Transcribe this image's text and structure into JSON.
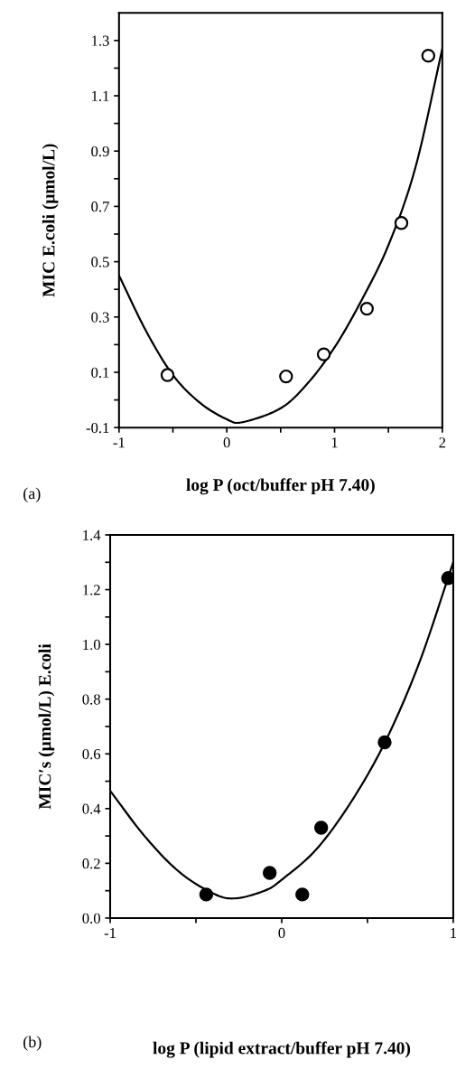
{
  "chart_data": [
    {
      "type": "scatter",
      "xlabel": "log P (oct/buffer pH 7.40)",
      "ylabel": "MIC E.coli (μmol/L)",
      "annotations": [
        "(a)"
      ],
      "xlim": [
        -1,
        2
      ],
      "xticks": [
        -1,
        {
          "value": -0.5,
          "label": null
        },
        0,
        {
          "value": 0.5,
          "label": null
        },
        1,
        {
          "value": 1.5,
          "label": null
        },
        2
      ],
      "ylim": [
        -0.1,
        1.4
      ],
      "yticks": [
        -0.1,
        {
          "value": 0.0,
          "label": null
        },
        0.1,
        {
          "value": 0.2,
          "label": null
        },
        0.3,
        {
          "value": 0.4,
          "label": null
        },
        0.5,
        {
          "value": 0.6,
          "label": null
        },
        0.7,
        {
          "value": 0.8,
          "label": null
        },
        0.9,
        {
          "value": 1.0,
          "label": null
        },
        1.1,
        {
          "value": 1.2,
          "label": null
        },
        1.3
      ],
      "grid": false,
      "legend": false,
      "series": [
        {
          "type": "line",
          "color": "#000000",
          "marker": "none",
          "line_style": "solid",
          "x": [
            -1,
            -0.75,
            -0.5,
            -0.25,
            0,
            0.15,
            0.5,
            0.75,
            1,
            1.25,
            1.5,
            1.75,
            2
          ],
          "values": [
            0.45,
            0.25,
            0.09,
            -0.01,
            -0.07,
            -0.08,
            -0.03,
            0.06,
            0.19,
            0.36,
            0.56,
            0.84,
            1.27
          ]
        },
        {
          "color": "#ffffff",
          "marker": "circle",
          "x": [
            -0.55,
            0.55,
            0.9,
            1.3,
            1.62,
            1.87
          ],
          "values": [
            0.09,
            0.085,
            0.165,
            0.33,
            0.64,
            1.245
          ]
        }
      ]
    },
    {
      "type": "scatter",
      "xlabel": "log P (lipid extract/buffer pH 7.40)",
      "ylabel": "MIC′s (μmol/L) E.coli",
      "annotations": [
        "(b)"
      ],
      "xlim": [
        -1,
        1
      ],
      "xticks": [
        -1,
        {
          "value": -0.5,
          "label": null
        },
        0,
        {
          "value": 0.5,
          "label": null
        },
        1
      ],
      "ylim": [
        0.0,
        1.4
      ],
      "yticks": [
        {
          "value": 0.0,
          "label": "0.0"
        },
        {
          "value": 0.1,
          "label": null
        },
        0.2,
        {
          "value": 0.3,
          "label": null
        },
        0.4,
        {
          "value": 0.5,
          "label": null
        },
        0.6,
        {
          "value": 0.7,
          "label": null
        },
        0.8,
        {
          "value": 0.9,
          "label": null
        },
        {
          "value": 1.0,
          "label": "1.0"
        },
        {
          "value": 1.1,
          "label": null
        },
        1.2,
        {
          "value": 1.3,
          "label": null
        },
        1.4
      ],
      "grid": false,
      "legend": false,
      "series": [
        {
          "type": "line",
          "color": "#000000",
          "marker": "none",
          "line_style": "solid",
          "x": [
            -1,
            -0.8,
            -0.6,
            -0.4,
            -0.27,
            -0.1,
            0,
            0.2,
            0.4,
            0.6,
            0.8,
            1
          ],
          "values": [
            0.465,
            0.3,
            0.17,
            0.09,
            0.072,
            0.1,
            0.14,
            0.25,
            0.42,
            0.64,
            0.93,
            1.3
          ]
        },
        {
          "color": "#000000",
          "marker": "circle",
          "x": [
            -0.44,
            -0.07,
            0.12,
            0.23,
            0.6,
            0.97
          ],
          "values": [
            0.086,
            0.165,
            0.086,
            0.33,
            0.642,
            1.242
          ]
        }
      ]
    }
  ]
}
